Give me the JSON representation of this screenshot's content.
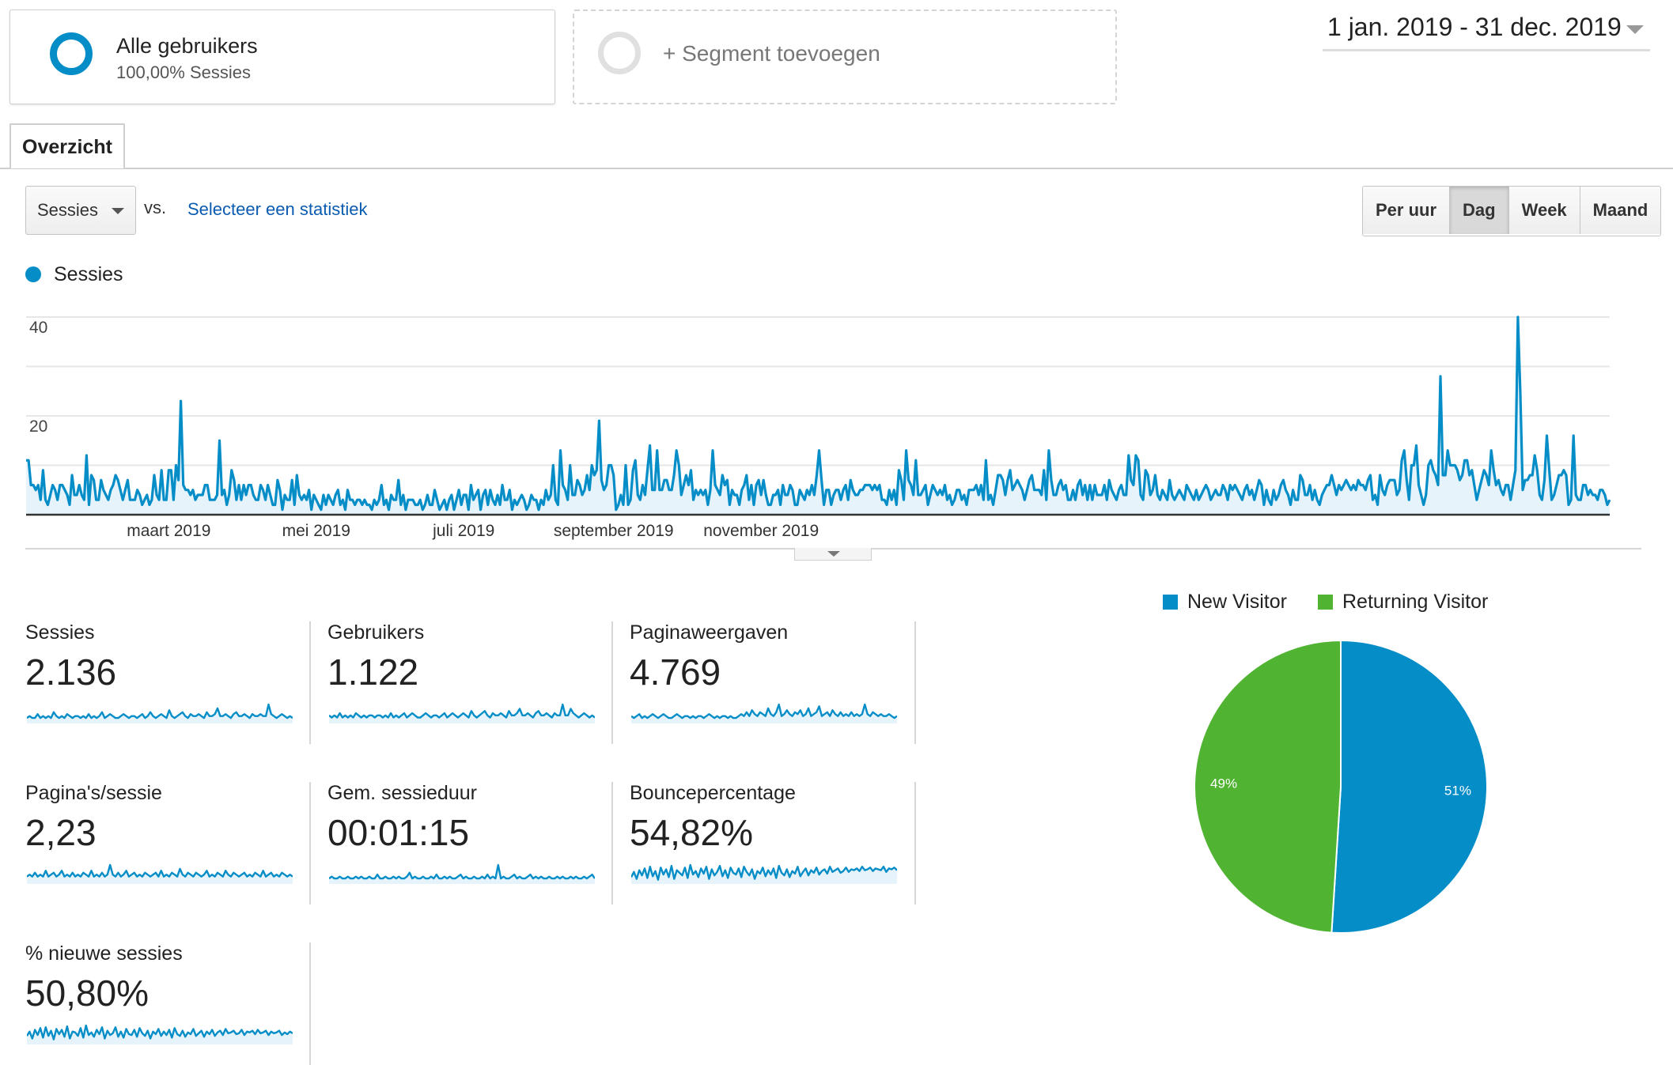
{
  "segments": {
    "active": {
      "title": "Alle gebruikers",
      "subtitle": "100,00% Sessies"
    },
    "add_label": "+ Segment toevoegen"
  },
  "date_range": "1 jan. 2019 - 31 dec. 2019",
  "tabs": [
    {
      "label": "Overzicht",
      "active": true
    }
  ],
  "controls": {
    "metric_select": "Sessies",
    "vs_label": "vs.",
    "compare_link": "Selecteer een statistiek",
    "periods": [
      {
        "label": "Per uur",
        "active": false
      },
      {
        "label": "Dag",
        "active": true
      },
      {
        "label": "Week",
        "active": false
      },
      {
        "label": "Maand",
        "active": false
      }
    ]
  },
  "colors": {
    "primary": "#058dc7",
    "secondary": "#50b432",
    "area_fill": "#e6f3fa",
    "grid": "#e6e6e6"
  },
  "chart_data": {
    "type": "area",
    "legend_label": "Sessies",
    "ylim": [
      0,
      40
    ],
    "y_ticks": [
      20,
      40
    ],
    "x_ticks": [
      "maart 2019",
      "mei 2019",
      "juli 2019",
      "september 2019",
      "november 2019"
    ],
    "x_tick_days": [
      59,
      120,
      181,
      243,
      304
    ],
    "series": [
      {
        "name": "Sessies",
        "values": [
          11,
          11,
          6,
          6,
          5,
          6,
          3,
          9,
          3,
          2,
          4,
          6,
          5,
          3,
          6,
          6,
          5,
          4,
          2,
          8,
          4,
          4,
          6,
          4,
          3,
          12,
          2,
          8,
          7,
          3,
          3,
          7,
          5,
          4,
          3,
          5,
          6,
          8,
          7,
          5,
          3,
          5,
          7,
          3,
          3,
          3,
          5,
          4,
          2,
          3,
          4,
          2,
          3,
          8,
          4,
          3,
          9,
          3,
          3,
          9,
          9,
          3,
          10,
          7,
          23,
          6,
          5,
          5,
          4,
          5,
          3,
          4,
          4,
          4,
          6,
          6,
          3,
          3,
          3,
          4,
          15,
          4,
          5,
          2,
          4,
          9,
          7,
          3,
          6,
          3,
          6,
          4,
          6,
          6,
          4,
          3,
          3,
          6,
          5,
          3,
          6,
          4,
          2,
          2,
          7,
          5,
          1,
          4,
          3,
          3,
          7,
          2,
          8,
          4,
          3,
          4,
          3,
          5,
          1,
          4,
          3,
          2,
          1,
          4,
          2,
          4,
          3,
          2,
          4,
          5,
          2,
          3,
          1,
          5,
          3,
          3,
          2,
          3,
          3,
          2,
          3,
          2,
          2,
          1,
          3,
          2,
          3,
          6,
          2,
          3,
          1,
          4,
          3,
          3,
          7,
          2,
          4,
          1,
          3,
          3,
          3,
          2,
          2,
          3,
          1,
          2,
          4,
          2,
          2,
          5,
          3,
          1,
          2,
          3,
          1,
          3,
          4,
          1,
          3,
          5,
          2,
          4,
          4,
          1,
          6,
          3,
          4,
          5,
          1,
          4,
          5,
          2,
          5,
          3,
          2,
          4,
          2,
          6,
          3,
          3,
          5,
          1,
          3,
          2,
          3,
          4,
          3,
          1,
          2,
          4,
          3,
          3,
          1,
          3,
          2,
          5,
          3,
          4,
          10,
          3,
          2,
          13,
          6,
          5,
          3,
          10,
          4,
          4,
          7,
          6,
          4,
          5,
          8,
          5,
          10,
          8,
          9,
          19,
          7,
          5,
          6,
          10,
          10,
          8,
          1,
          2,
          4,
          2,
          10,
          2,
          3,
          9,
          11,
          4,
          3,
          6,
          4,
          9,
          14,
          5,
          5,
          13,
          5,
          5,
          7,
          7,
          5,
          5,
          8,
          13,
          10,
          4,
          6,
          8,
          6,
          9,
          3,
          5,
          4,
          5,
          4,
          5,
          2,
          5,
          13,
          6,
          5,
          4,
          8,
          6,
          7,
          2,
          5,
          4,
          4,
          2,
          5,
          6,
          8,
          3,
          6,
          2,
          6,
          7,
          4,
          7,
          4,
          2,
          2,
          4,
          4,
          5,
          2,
          6,
          4,
          4,
          6,
          5,
          2,
          2,
          5,
          4,
          3,
          5,
          4,
          6,
          4,
          8,
          13,
          7,
          2,
          5,
          5,
          2,
          4,
          5,
          5,
          3,
          5,
          6,
          3,
          7,
          5,
          4,
          4,
          5,
          5,
          6,
          6,
          6,
          5,
          6,
          5,
          6,
          3,
          3,
          2,
          5,
          3,
          5,
          2,
          9,
          7,
          3,
          13,
          7,
          6,
          4,
          11,
          4,
          4,
          5,
          6,
          2,
          4,
          6,
          5,
          4,
          5,
          4,
          6,
          3,
          4,
          2,
          3,
          5,
          5,
          3,
          4,
          2,
          5,
          5,
          5,
          6,
          4,
          6,
          3,
          11,
          3,
          4,
          2,
          5,
          8,
          8,
          7,
          4,
          7,
          9,
          5,
          6,
          7,
          6,
          5,
          3,
          5,
          7,
          8,
          5,
          5,
          5,
          4,
          9,
          3,
          13,
          7,
          4,
          4,
          6,
          7,
          5,
          6,
          3,
          3,
          5,
          3,
          6,
          7,
          4,
          6,
          3,
          6,
          3,
          6,
          4,
          4,
          4,
          6,
          3,
          7,
          5,
          4,
          3,
          5,
          6,
          4,
          4,
          12,
          7,
          6,
          12,
          11,
          4,
          3,
          9,
          8,
          4,
          5,
          8,
          4,
          3,
          5,
          4,
          3,
          7,
          4,
          3,
          4,
          5,
          4,
          3,
          6,
          5,
          4,
          3,
          5,
          3,
          4,
          5,
          6,
          5,
          3,
          4,
          5,
          4,
          4,
          6,
          5,
          3,
          6,
          5,
          6,
          5,
          4,
          3,
          5,
          6,
          4,
          5,
          3,
          5,
          7,
          6,
          2,
          5,
          3,
          2,
          5,
          3,
          4,
          6,
          7,
          5,
          4,
          2,
          5,
          3,
          3,
          8,
          7,
          4,
          4,
          6,
          3,
          5,
          3,
          2,
          4,
          5,
          6,
          6,
          8,
          6,
          4,
          6,
          5,
          6,
          7,
          6,
          5,
          6,
          5,
          7,
          6,
          6,
          5,
          7,
          8,
          3,
          4,
          2,
          8,
          5,
          4,
          6,
          7,
          7,
          7,
          4,
          5,
          11,
          13,
          7,
          3,
          10,
          10,
          14,
          6,
          4,
          2,
          4,
          10,
          11,
          9,
          8,
          6,
          28,
          8,
          8,
          13,
          10,
          10,
          10,
          9,
          7,
          8,
          11,
          11,
          8,
          9,
          6,
          3,
          5,
          7,
          9,
          8,
          6,
          13,
          9,
          6,
          7,
          5,
          4,
          6,
          6,
          3,
          6,
          9,
          40,
          25,
          5,
          7,
          7,
          8,
          8,
          12,
          9,
          4,
          3,
          7,
          16,
          9,
          3,
          4,
          6,
          8,
          8,
          9,
          8,
          2,
          3,
          16,
          4,
          3,
          3,
          6,
          6,
          4,
          5,
          4,
          4,
          3,
          5,
          5,
          4,
          2,
          3
        ]
      }
    ]
  },
  "metrics": [
    {
      "label": "Sessies",
      "value": "2.136",
      "spark": [
        2,
        3,
        2,
        2,
        4,
        2,
        3,
        2,
        3,
        2,
        5,
        3,
        2,
        3,
        2,
        4,
        3,
        2,
        3,
        3,
        2,
        3,
        2,
        4,
        2,
        3,
        2,
        3,
        5,
        2,
        3,
        4,
        3,
        2,
        2,
        3,
        4,
        3,
        2,
        3,
        3,
        2,
        3,
        4,
        2,
        3,
        5,
        3,
        2,
        3,
        4,
        3,
        2,
        6,
        3,
        2,
        3,
        4,
        5,
        3,
        2,
        4,
        3,
        3,
        4,
        3,
        2,
        5,
        3,
        3,
        4,
        7,
        3,
        3,
        4,
        3,
        2,
        4,
        5,
        3,
        3,
        4,
        3,
        2,
        4,
        3,
        3,
        4,
        3,
        3,
        9,
        4,
        3,
        2,
        3,
        4,
        3,
        2,
        3,
        2
      ]
    },
    {
      "label": "Gebruikers",
      "value": "1.122",
      "spark": [
        3,
        2,
        3,
        2,
        4,
        2,
        3,
        2,
        3,
        2,
        4,
        3,
        2,
        3,
        2,
        3,
        3,
        2,
        3,
        3,
        2,
        3,
        2,
        4,
        2,
        3,
        2,
        3,
        4,
        2,
        3,
        4,
        3,
        2,
        2,
        3,
        4,
        3,
        2,
        3,
        3,
        2,
        3,
        4,
        2,
        3,
        4,
        3,
        2,
        3,
        4,
        3,
        2,
        5,
        3,
        2,
        3,
        4,
        5,
        3,
        2,
        4,
        3,
        3,
        4,
        3,
        2,
        5,
        3,
        3,
        4,
        6,
        3,
        3,
        4,
        3,
        2,
        4,
        5,
        3,
        3,
        4,
        3,
        2,
        4,
        3,
        3,
        8,
        3,
        3,
        6,
        4,
        3,
        2,
        3,
        4,
        3,
        2,
        3,
        2
      ]
    },
    {
      "label": "Paginaweergaven",
      "value": "4.769",
      "spark": [
        3,
        2,
        3,
        4,
        2,
        3,
        2,
        3,
        4,
        3,
        2,
        3,
        4,
        3,
        2,
        2,
        3,
        4,
        3,
        2,
        3,
        3,
        2,
        3,
        2,
        3,
        3,
        2,
        3,
        4,
        3,
        2,
        3,
        2,
        3,
        3,
        2,
        3,
        2,
        2,
        3,
        4,
        3,
        5,
        3,
        6,
        4,
        3,
        5,
        4,
        3,
        7,
        4,
        3,
        5,
        9,
        3,
        4,
        6,
        4,
        3,
        5,
        4,
        6,
        3,
        4,
        7,
        3,
        4,
        5,
        8,
        3,
        4,
        5,
        3,
        6,
        4,
        3,
        5,
        3,
        4,
        3,
        5,
        3,
        4,
        3,
        4,
        9,
        4,
        3,
        5,
        4,
        3,
        4,
        3,
        3,
        4,
        3,
        2,
        3
      ]
    },
    {
      "label": "Pagina's/sessie",
      "value": "2,23",
      "spark": [
        3,
        4,
        3,
        5,
        3,
        4,
        3,
        6,
        3,
        4,
        5,
        3,
        4,
        6,
        3,
        4,
        3,
        5,
        3,
        4,
        3,
        5,
        4,
        3,
        6,
        3,
        4,
        3,
        5,
        3,
        4,
        9,
        4,
        3,
        5,
        3,
        4,
        6,
        3,
        4,
        5,
        3,
        4,
        3,
        5,
        4,
        3,
        4,
        5,
        3,
        6,
        3,
        4,
        3,
        5,
        4,
        3,
        7,
        4,
        3,
        5,
        4,
        3,
        5,
        4,
        3,
        4,
        6,
        3,
        4,
        3,
        5,
        4,
        3,
        6,
        4,
        3,
        5,
        4,
        3,
        4,
        5,
        3,
        4,
        3,
        5,
        4,
        3,
        6,
        3,
        4,
        5,
        3,
        4,
        3,
        5,
        4,
        3,
        4,
        3
      ]
    },
    {
      "label": "Gem. sessieduur",
      "value": "00:01:15",
      "spark": [
        2,
        3,
        2,
        2,
        3,
        2,
        2,
        3,
        2,
        2,
        3,
        2,
        3,
        2,
        2,
        3,
        2,
        2,
        4,
        2,
        2,
        3,
        2,
        2,
        3,
        2,
        3,
        2,
        2,
        3,
        5,
        2,
        3,
        2,
        2,
        3,
        2,
        2,
        3,
        2,
        4,
        2,
        2,
        3,
        2,
        3,
        2,
        2,
        3,
        4,
        2,
        3,
        2,
        2,
        3,
        2,
        2,
        3,
        2,
        4,
        2,
        3,
        2,
        9,
        2,
        3,
        2,
        2,
        3,
        4,
        2,
        3,
        2,
        2,
        3,
        4,
        2,
        3,
        2,
        3,
        2,
        2,
        3,
        2,
        2,
        3,
        2,
        3,
        2,
        2,
        3,
        2,
        3,
        2,
        2,
        3,
        2,
        3,
        4,
        2
      ]
    },
    {
      "label": "Bouncepercentage",
      "value": "54,82%",
      "spark": [
        6,
        12,
        4,
        14,
        8,
        16,
        5,
        18,
        7,
        13,
        3,
        17,
        9,
        15,
        6,
        19,
        4,
        14,
        11,
        8,
        17,
        5,
        20,
        9,
        13,
        6,
        16,
        10,
        18,
        4,
        15,
        8,
        12,
        19,
        7,
        14,
        5,
        17,
        11,
        9,
        16,
        6,
        18,
        12,
        8,
        15,
        4,
        13,
        10,
        17,
        7,
        14,
        9,
        16,
        5,
        19,
        11,
        8,
        15,
        6,
        13,
        10,
        18,
        7,
        12,
        16,
        8,
        14,
        11,
        17,
        9,
        13,
        15,
        10,
        18,
        12,
        14,
        16,
        11,
        13,
        17,
        12,
        15,
        14,
        16,
        13,
        18,
        14,
        15,
        17,
        13,
        16,
        15,
        14,
        18,
        12,
        16,
        15,
        17,
        14
      ]
    },
    {
      "label": "% nieuwe sessies",
      "value": "50,80%",
      "spark": [
        8,
        13,
        5,
        15,
        9,
        17,
        6,
        18,
        8,
        14,
        4,
        16,
        10,
        15,
        7,
        19,
        5,
        13,
        12,
        8,
        17,
        6,
        20,
        9,
        12,
        7,
        15,
        10,
        18,
        5,
        14,
        9,
        11,
        18,
        7,
        13,
        6,
        16,
        10,
        9,
        15,
        7,
        17,
        11,
        8,
        14,
        5,
        13,
        10,
        16,
        8,
        13,
        9,
        15,
        6,
        17,
        10,
        8,
        14,
        7,
        12,
        10,
        16,
        8,
        11,
        14,
        7,
        13,
        10,
        15,
        8,
        12,
        14,
        9,
        16,
        11,
        12,
        14,
        10,
        11,
        15,
        9,
        13,
        12,
        14,
        10,
        15,
        11,
        12,
        14,
        9,
        13,
        11,
        12,
        14,
        9,
        12,
        10,
        13,
        11
      ]
    }
  ],
  "pie": {
    "type": "pie",
    "slices": [
      {
        "name": "New Visitor",
        "value": 51,
        "label": "51%",
        "color": "#058dc7"
      },
      {
        "name": "Returning Visitor",
        "value": 49,
        "label": "49%",
        "color": "#50b432"
      }
    ]
  }
}
